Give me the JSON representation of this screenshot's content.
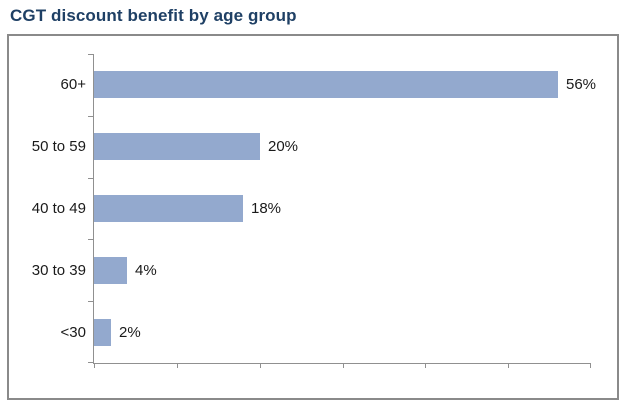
{
  "header": {
    "title": "CGT discount benefit by age group",
    "title_color": "#1f4065"
  },
  "chart_data": {
    "type": "bar",
    "orientation": "horizontal",
    "title": "CGT discount benefit by age group",
    "categories": [
      "60+",
      "50 to 59",
      "40 to 49",
      "30 to 39",
      "<30"
    ],
    "values": [
      56,
      20,
      18,
      4,
      2
    ],
    "value_labels": [
      "56%",
      "20%",
      "18%",
      "4%",
      "2%"
    ],
    "xlabel": "",
    "ylabel": "",
    "xlim": [
      0,
      60
    ],
    "x_tick_interval": 10,
    "x_tick_labels_visible": false,
    "grid": false,
    "legend": false,
    "colors": {
      "bar_fill": "#93A9CE",
      "axis_line": "#909090",
      "frame_border": "#8a8a8a",
      "text": "#1a1a1a"
    }
  }
}
